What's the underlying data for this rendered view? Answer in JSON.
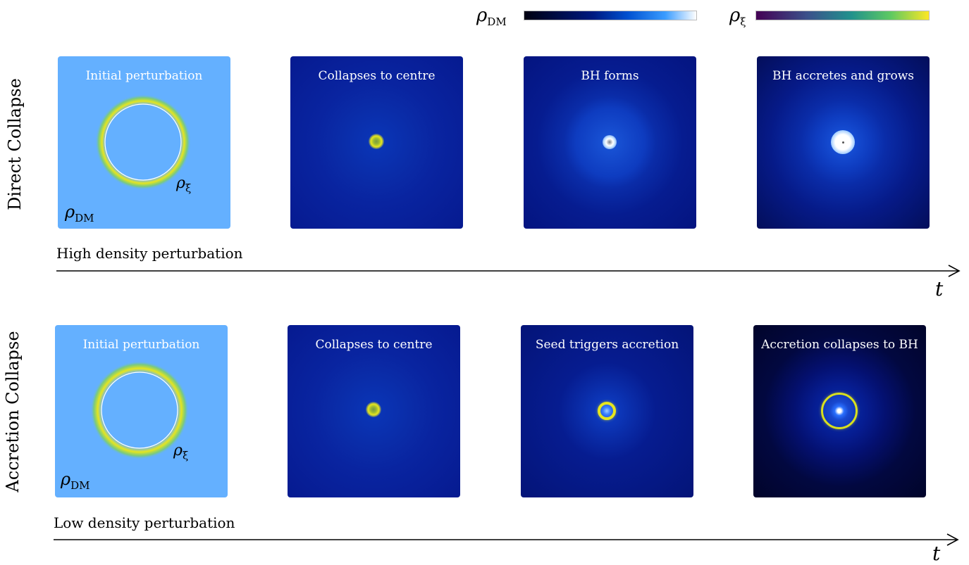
{
  "colorbars": {
    "dm_symbol": "ρ",
    "dm_subscript": "DM",
    "xi_symbol": "ρ",
    "xi_subscript": "ξ",
    "dm_gradient": [
      "#000010",
      "#001a80",
      "#0050d0",
      "#3a9cff",
      "#ffffff"
    ],
    "xi_gradient": [
      "#440154",
      "#3b528b",
      "#21918c",
      "#5ec962",
      "#fde725"
    ]
  },
  "rows": [
    {
      "label": "Direct Collapse",
      "axis_caption": "High density perturbation",
      "time_symbol": "t",
      "panels": [
        {
          "title": "Initial perturbation",
          "annot_xi": "ρ",
          "annot_xi_sub": "ξ",
          "annot_dm": "ρ",
          "annot_dm_sub": "DM"
        },
        {
          "title": "Collapses to centre"
        },
        {
          "title": "BH forms"
        },
        {
          "title": "BH accretes and grows"
        }
      ]
    },
    {
      "label": "Accretion Collapse",
      "axis_caption": "Low density perturbation",
      "time_symbol": "t",
      "panels": [
        {
          "title": "Initial perturbation",
          "annot_xi": "ρ",
          "annot_xi_sub": "ξ",
          "annot_dm": "ρ",
          "annot_dm_sub": "DM"
        },
        {
          "title": "Collapses to centre"
        },
        {
          "title": "Seed triggers accretion"
        },
        {
          "title": "Accretion collapses to BH"
        }
      ]
    }
  ],
  "colors": {
    "initial_bg": "#64b0ff",
    "ring": "#e6e61e",
    "axis": "#000000"
  }
}
